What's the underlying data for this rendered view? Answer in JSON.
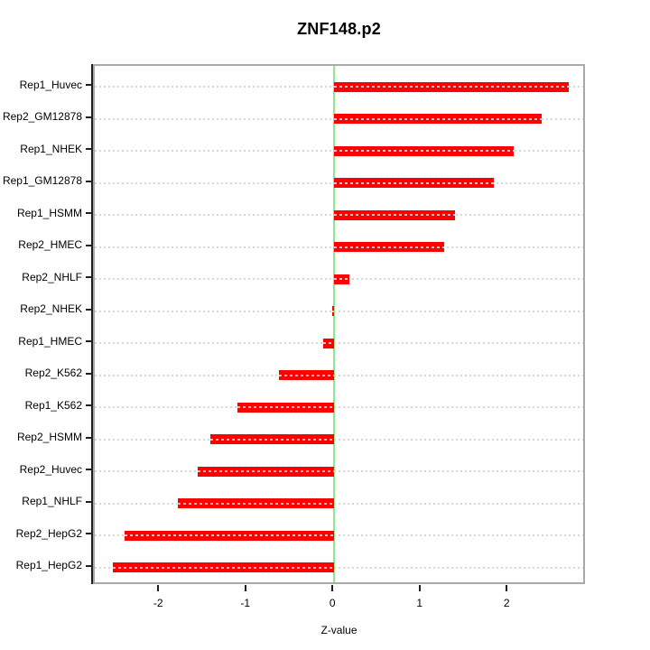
{
  "title": "ZNF148.p2",
  "x_axis": {
    "label": "Z-value",
    "tick_labels": [
      "-2",
      "-1",
      "0",
      "1",
      "2"
    ],
    "tick_values": [
      -2,
      -1,
      0,
      1,
      2
    ]
  },
  "chart_data": {
    "type": "bar",
    "orientation": "horizontal",
    "title": "ZNF148.p2",
    "xlabel": "Z-value",
    "ylabel": "",
    "categories": [
      "Rep1_Huvec",
      "Rep2_GM12878",
      "Rep1_NHEK",
      "Rep1_GM12878",
      "Rep1_HSMM",
      "Rep2_HMEC",
      "Rep2_NHLF",
      "Rep2_NHEK",
      "Rep1_HMEC",
      "Rep2_K562",
      "Rep1_K562",
      "Rep2_HSMM",
      "Rep2_Huvec",
      "Rep1_NHLF",
      "Rep2_HepG2",
      "Rep1_HepG2"
    ],
    "values": [
      2.69,
      2.38,
      2.06,
      1.83,
      1.39,
      1.26,
      0.17,
      -0.02,
      -0.13,
      -0.64,
      -1.11,
      -1.42,
      -1.57,
      -1.8,
      -2.41,
      -2.54
    ],
    "xlim": [
      -2.749,
      2.899
    ],
    "x_ticks": [
      -2,
      -1,
      0,
      1,
      2
    ],
    "grid": "dotted horizontal line per category",
    "legend": "none",
    "colors": {
      "bar": "#ff0000",
      "zero_line": "#8de88d",
      "plot_border": "#a9a9a9",
      "axis": "#1f1f1f",
      "grid": "#d6d6d6",
      "text": "#000000",
      "background": "#ffffff"
    }
  }
}
